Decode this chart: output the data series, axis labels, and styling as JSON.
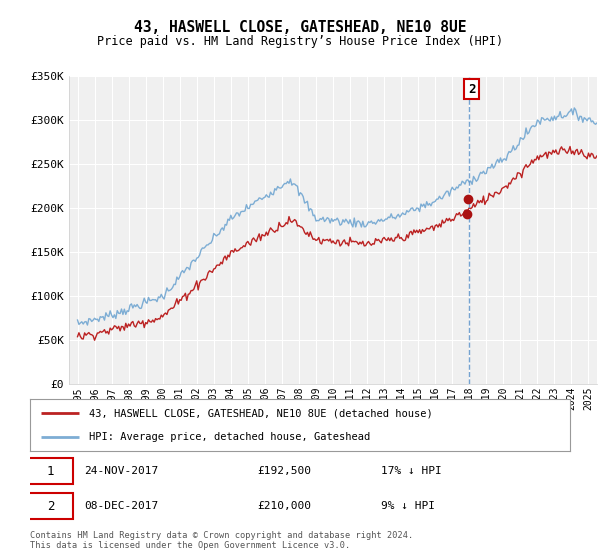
{
  "title": "43, HASWELL CLOSE, GATESHEAD, NE10 8UE",
  "subtitle": "Price paid vs. HM Land Registry’s House Price Index (HPI)",
  "legend_line1": "43, HASWELL CLOSE, GATESHEAD, NE10 8UE (detached house)",
  "legend_line2": "HPI: Average price, detached house, Gateshead",
  "sale1_date": "24-NOV-2017",
  "sale1_price": "£192,500",
  "sale1_hpi": "17% ↓ HPI",
  "sale2_date": "08-DEC-2017",
  "sale2_price": "£210,000",
  "sale2_hpi": "9% ↓ HPI",
  "footer": "Contains HM Land Registry data © Crown copyright and database right 2024.\nThis data is licensed under the Open Government Licence v3.0.",
  "hpi_color": "#7dadd4",
  "price_color": "#bb2222",
  "vline_color": "#6699cc",
  "marker_color": "#aa1111",
  "label2_border": "#cc0000",
  "ylim_min": 0,
  "ylim_max": 350000,
  "yticks": [
    0,
    50000,
    100000,
    150000,
    200000,
    250000,
    300000,
    350000
  ],
  "ytick_labels": [
    "£0",
    "£50K",
    "£100K",
    "£150K",
    "£200K",
    "£250K",
    "£300K",
    "£350K"
  ],
  "background_color": "#f0f0f0",
  "grid_color": "#ffffff",
  "sale1_x": 2017.88,
  "sale1_y": 192500,
  "sale2_x": 2017.94,
  "sale2_y": 210000,
  "vline_x": 2018.0,
  "xmin": 1994.5,
  "xmax": 2025.5
}
